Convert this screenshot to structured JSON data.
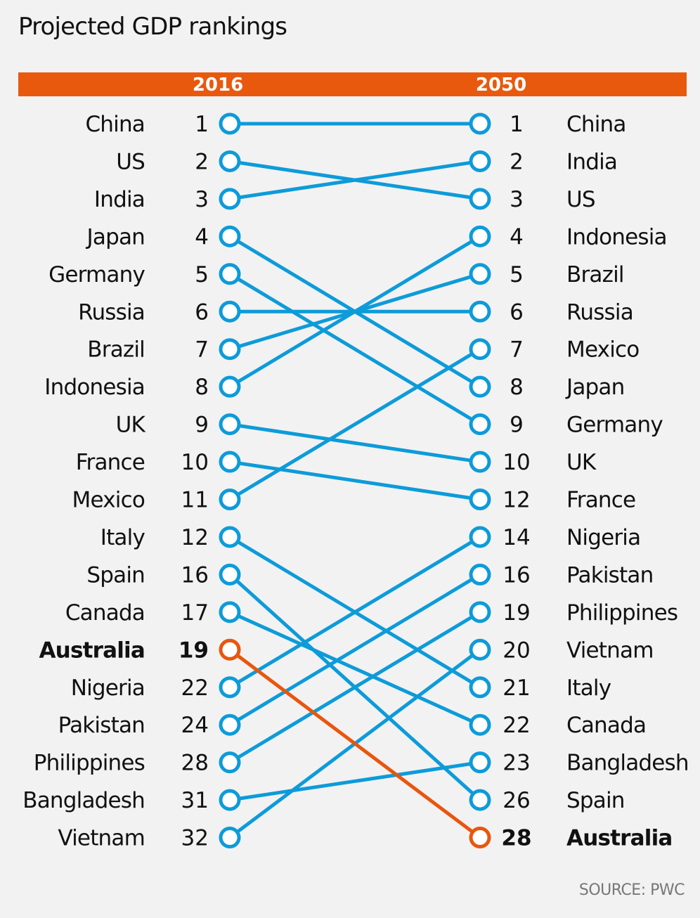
{
  "title": "Projected GDP rankings",
  "source": "SOURCE: PWC",
  "colors": {
    "line": "#0d9bd9",
    "highlight": "#e8560e",
    "header_bar": "#e8590e",
    "background": "#f2f2f2"
  },
  "chart_data": {
    "type": "slope",
    "left_label": "2016",
    "right_label": "2050",
    "highlight": "Australia",
    "left": [
      {
        "country": "China",
        "rank": 1
      },
      {
        "country": "US",
        "rank": 2
      },
      {
        "country": "India",
        "rank": 3
      },
      {
        "country": "Japan",
        "rank": 4
      },
      {
        "country": "Germany",
        "rank": 5
      },
      {
        "country": "Russia",
        "rank": 6
      },
      {
        "country": "Brazil",
        "rank": 7
      },
      {
        "country": "Indonesia",
        "rank": 8
      },
      {
        "country": "UK",
        "rank": 9
      },
      {
        "country": "France",
        "rank": 10
      },
      {
        "country": "Mexico",
        "rank": 11
      },
      {
        "country": "Italy",
        "rank": 12
      },
      {
        "country": "Spain",
        "rank": 16
      },
      {
        "country": "Canada",
        "rank": 17
      },
      {
        "country": "Australia",
        "rank": 19
      },
      {
        "country": "Nigeria",
        "rank": 22
      },
      {
        "country": "Pakistan",
        "rank": 24
      },
      {
        "country": "Philippines",
        "rank": 28
      },
      {
        "country": "Bangladesh",
        "rank": 31
      },
      {
        "country": "Vietnam",
        "rank": 32
      }
    ],
    "right": [
      {
        "country": "China",
        "rank": 1
      },
      {
        "country": "India",
        "rank": 2
      },
      {
        "country": "US",
        "rank": 3
      },
      {
        "country": "Indonesia",
        "rank": 4
      },
      {
        "country": "Brazil",
        "rank": 5
      },
      {
        "country": "Russia",
        "rank": 6
      },
      {
        "country": "Mexico",
        "rank": 7
      },
      {
        "country": "Japan",
        "rank": 8
      },
      {
        "country": "Germany",
        "rank": 9
      },
      {
        "country": "UK",
        "rank": 10
      },
      {
        "country": "France",
        "rank": 12
      },
      {
        "country": "Nigeria",
        "rank": 14
      },
      {
        "country": "Pakistan",
        "rank": 16
      },
      {
        "country": "Philippines",
        "rank": 19
      },
      {
        "country": "Vietnam",
        "rank": 20
      },
      {
        "country": "Italy",
        "rank": 21
      },
      {
        "country": "Canada",
        "rank": 22
      },
      {
        "country": "Bangladesh",
        "rank": 23
      },
      {
        "country": "Spain",
        "rank": 26
      },
      {
        "country": "Australia",
        "rank": 28
      }
    ]
  }
}
